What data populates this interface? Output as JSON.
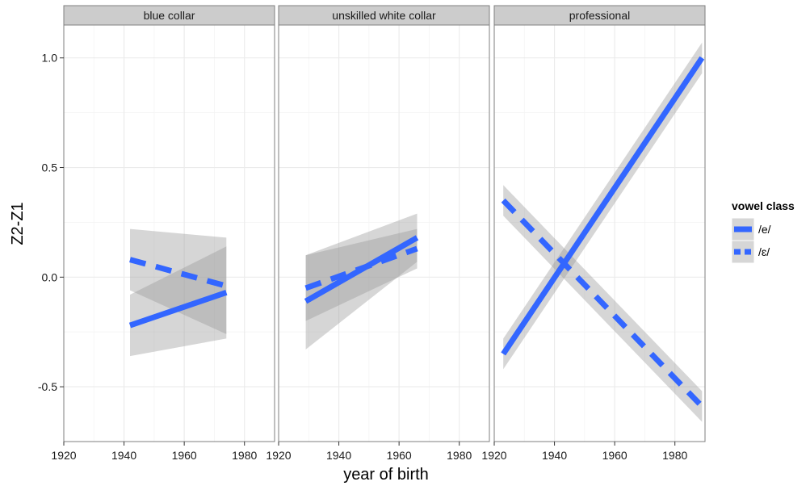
{
  "chart_data": {
    "type": "line",
    "xlabel": "year of birth",
    "ylabel": "Z2-Z1",
    "xlim": [
      1920,
      1990
    ],
    "ylim": [
      -0.75,
      1.15
    ],
    "x_ticks": [
      1920,
      1940,
      1960,
      1980
    ],
    "y_ticks": [
      -0.5,
      0.0,
      0.5,
      1.0
    ],
    "y_tick_labels": [
      "-0.5",
      "0.0",
      "0.5",
      "1.0"
    ],
    "grid": true,
    "legend": {
      "title": "vowel class",
      "placement": "right",
      "entries": [
        {
          "label": "/e/",
          "linestyle": "solid"
        },
        {
          "label": "/ɛ/",
          "linestyle": "dashed"
        }
      ]
    },
    "colors": {
      "line": "#3366ff",
      "band": "#999999",
      "strip": "#cccccc",
      "panel_border": "#7f7f7f",
      "grid": "#ebebeb"
    },
    "facets": [
      {
        "label": "blue collar",
        "series": [
          {
            "vowel": "/e/",
            "x": [
              1942,
              1974
            ],
            "y": [
              -0.22,
              -0.07
            ],
            "ci_lower": [
              -0.36,
              -0.28
            ],
            "ci_upper": [
              -0.08,
              0.14
            ]
          },
          {
            "vowel": "/ɛ/",
            "x": [
              1942,
              1974
            ],
            "y": [
              0.08,
              -0.04
            ],
            "ci_lower": [
              -0.06,
              -0.26
            ],
            "ci_upper": [
              0.22,
              0.18
            ]
          }
        ]
      },
      {
        "label": "unskilled white collar",
        "series": [
          {
            "vowel": "/e/",
            "x": [
              1929,
              1966
            ],
            "y": [
              -0.11,
              0.18
            ],
            "ci_lower": [
              -0.33,
              0.07
            ],
            "ci_upper": [
              0.1,
              0.29
            ]
          },
          {
            "vowel": "/ɛ/",
            "x": [
              1929,
              1966
            ],
            "y": [
              -0.05,
              0.13
            ],
            "ci_lower": [
              -0.2,
              0.04
            ],
            "ci_upper": [
              0.1,
              0.22
            ]
          }
        ]
      },
      {
        "label": "professional",
        "series": [
          {
            "vowel": "/e/",
            "x": [
              1923,
              1989
            ],
            "y": [
              -0.35,
              1.0
            ],
            "ci_lower": [
              -0.42,
              0.93
            ],
            "ci_upper": [
              -0.28,
              1.07
            ]
          },
          {
            "vowel": "/ɛ/",
            "x": [
              1923,
              1989
            ],
            "y": [
              0.35,
              -0.59
            ],
            "ci_lower": [
              0.28,
              -0.66
            ],
            "ci_upper": [
              0.42,
              -0.52
            ]
          }
        ]
      }
    ]
  }
}
